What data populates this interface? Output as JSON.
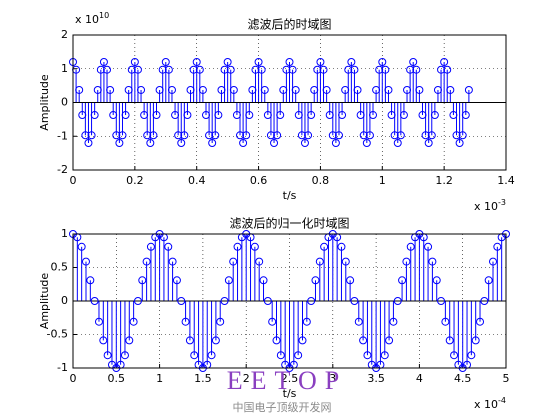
{
  "chart_data": [
    {
      "type": "stem",
      "title": "滤波后的时域图",
      "xlabel": "t/s",
      "ylabel": "Amplitude",
      "x_exponent_label": {
        "text": "x 10",
        "exponent": "-3"
      },
      "y_exponent_label": {
        "text": "x 10",
        "exponent": "10"
      },
      "color": "#0000ff",
      "grid": true,
      "xlim": [
        0,
        1.4
      ],
      "ylim": [
        -2,
        2
      ],
      "xticks": [
        0,
        0.2,
        0.4,
        0.6,
        0.8,
        1,
        1.2,
        1.4
      ],
      "yticks": [
        -2,
        -1,
        0,
        1,
        2
      ],
      "x": [
        0,
        0.01,
        0.02,
        0.03,
        0.04,
        0.05,
        0.06,
        0.07,
        0.08,
        0.09,
        0.1,
        0.11,
        0.12,
        0.13,
        0.14,
        0.15,
        0.16,
        0.17,
        0.18,
        0.19,
        0.2,
        0.21,
        0.22,
        0.23,
        0.24,
        0.25,
        0.26,
        0.27,
        0.28,
        0.29,
        0.3,
        0.31,
        0.32,
        0.33,
        0.34,
        0.35,
        0.36,
        0.37,
        0.38,
        0.39,
        0.4,
        0.41,
        0.42,
        0.43,
        0.44,
        0.45,
        0.46,
        0.47,
        0.48,
        0.49,
        0.5,
        0.51,
        0.52,
        0.53,
        0.54,
        0.55,
        0.56,
        0.57,
        0.58,
        0.59,
        0.6,
        0.61,
        0.62,
        0.63,
        0.64,
        0.65,
        0.66,
        0.67,
        0.68,
        0.69,
        0.7,
        0.71,
        0.72,
        0.73,
        0.74,
        0.75,
        0.76,
        0.77,
        0.78,
        0.79,
        0.8,
        0.81,
        0.82,
        0.83,
        0.84,
        0.85,
        0.86,
        0.87,
        0.88,
        0.89,
        0.9,
        0.91,
        0.92,
        0.93,
        0.94,
        0.95,
        0.96,
        0.97,
        0.98,
        0.99,
        1,
        1.01,
        1.02,
        1.03,
        1.04,
        1.05,
        1.06,
        1.07,
        1.08,
        1.09,
        1.1,
        1.11,
        1.12,
        1.13,
        1.14,
        1.15,
        1.16,
        1.17,
        1.18,
        1.19,
        1.2,
        1.21,
        1.22,
        1.23,
        1.24,
        1.25,
        1.26,
        1.27,
        1.28
      ],
      "values": [
        1.2,
        0.971,
        0.371,
        -0.371,
        -0.971,
        -1.2,
        -0.971,
        -0.371,
        0.371,
        0.971,
        1.2,
        0.971,
        0.371,
        -0.371,
        -0.971,
        -1.2,
        -0.971,
        -0.371,
        0.371,
        0.971,
        1.2,
        0.971,
        0.371,
        -0.371,
        -0.971,
        -1.2,
        -0.971,
        -0.371,
        0.371,
        0.971,
        1.2,
        0.971,
        0.371,
        -0.371,
        -0.971,
        -1.2,
        -0.971,
        -0.371,
        0.371,
        0.971,
        1.2,
        0.971,
        0.371,
        -0.371,
        -0.971,
        -1.2,
        -0.971,
        -0.371,
        0.371,
        0.971,
        1.2,
        0.971,
        0.371,
        -0.371,
        -0.971,
        -1.2,
        -0.971,
        -0.371,
        0.371,
        0.971,
        1.2,
        0.971,
        0.371,
        -0.371,
        -0.971,
        -1.2,
        -0.971,
        -0.371,
        0.371,
        0.971,
        1.2,
        0.971,
        0.371,
        -0.371,
        -0.971,
        -1.2,
        -0.971,
        -0.371,
        0.371,
        0.971,
        1.2,
        0.971,
        0.371,
        -0.371,
        -0.971,
        -1.2,
        -0.971,
        -0.371,
        0.371,
        0.971,
        1.2,
        0.971,
        0.371,
        -0.371,
        -0.971,
        -1.2,
        -0.971,
        -0.371,
        0.371,
        0.971,
        1.2,
        0.971,
        0.371,
        -0.371,
        -0.971,
        -1.2,
        -0.971,
        -0.371,
        0.371,
        0.971,
        1.2,
        0.971,
        0.371,
        -0.371,
        -0.971,
        -1.2,
        -0.971,
        -0.371,
        0.371,
        0.971,
        1.2,
        0.971,
        0.371,
        -0.371,
        -0.971,
        -1.2,
        -0.971,
        -0.371,
        0.371
      ]
    },
    {
      "type": "stem",
      "title": "滤波后的归一化时域图",
      "xlabel": "t/s",
      "ylabel": "Amplitude",
      "x_exponent_label": {
        "text": "x 10",
        "exponent": "-4"
      },
      "color": "#0000ff",
      "grid": true,
      "xlim": [
        0,
        5
      ],
      "ylim": [
        -1,
        1
      ],
      "xticks": [
        0,
        0.5,
        1,
        1.5,
        2,
        2.5,
        3,
        3.5,
        4,
        4.5,
        5
      ],
      "yticks": [
        -1,
        -0.5,
        0,
        0.5,
        1
      ],
      "x": [
        0,
        0.05,
        0.1,
        0.15,
        0.2,
        0.25,
        0.3,
        0.35,
        0.4,
        0.45,
        0.5,
        0.55,
        0.6,
        0.65,
        0.7,
        0.75,
        0.8,
        0.85,
        0.9,
        0.95,
        1,
        1.05,
        1.1,
        1.15,
        1.2,
        1.25,
        1.3,
        1.35,
        1.4,
        1.45,
        1.5,
        1.55,
        1.6,
        1.65,
        1.7,
        1.75,
        1.8,
        1.85,
        1.9,
        1.95,
        2,
        2.05,
        2.1,
        2.15,
        2.2,
        2.25,
        2.3,
        2.35,
        2.4,
        2.45,
        2.5,
        2.55,
        2.6,
        2.65,
        2.7,
        2.75,
        2.8,
        2.85,
        2.9,
        2.95,
        3,
        3.05,
        3.1,
        3.15,
        3.2,
        3.25,
        3.3,
        3.35,
        3.4,
        3.45,
        3.5,
        3.55,
        3.6,
        3.65,
        3.7,
        3.75,
        3.8,
        3.85,
        3.9,
        3.95,
        4,
        4.05,
        4.1,
        4.15,
        4.2,
        4.25,
        4.3,
        4.35,
        4.4,
        4.45,
        4.5,
        4.55,
        4.6,
        4.65,
        4.7,
        4.75,
        4.8,
        4.85,
        4.9,
        4.95,
        5
      ],
      "values": [
        1,
        0.951,
        0.809,
        0.588,
        0.309,
        0,
        -0.309,
        -0.588,
        -0.809,
        -0.951,
        -1,
        -0.951,
        -0.809,
        -0.588,
        -0.309,
        0,
        0.309,
        0.588,
        0.809,
        0.951,
        1,
        0.951,
        0.809,
        0.588,
        0.309,
        0,
        -0.309,
        -0.588,
        -0.809,
        -0.951,
        -1,
        -0.951,
        -0.809,
        -0.588,
        -0.309,
        0,
        0.309,
        0.588,
        0.809,
        0.951,
        1,
        0.951,
        0.809,
        0.588,
        0.309,
        0,
        -0.309,
        -0.588,
        -0.809,
        -0.951,
        -1,
        -0.951,
        -0.809,
        -0.588,
        -0.309,
        0,
        0.309,
        0.588,
        0.809,
        0.951,
        1,
        0.951,
        0.809,
        0.588,
        0.309,
        0,
        -0.309,
        -0.588,
        -0.809,
        -0.951,
        -1,
        -0.951,
        -0.809,
        -0.588,
        -0.309,
        0,
        0.309,
        0.588,
        0.809,
        0.951,
        1,
        0.951,
        0.809,
        0.588,
        0.309,
        0,
        -0.309,
        -0.588,
        -0.809,
        -0.951,
        -1,
        -0.951,
        -0.809,
        -0.588,
        -0.309,
        0,
        0.309,
        0.588,
        0.809,
        0.951,
        1
      ]
    }
  ],
  "watermark": {
    "logo": "EETOP",
    "site": "中国电子顶级开发网"
  }
}
